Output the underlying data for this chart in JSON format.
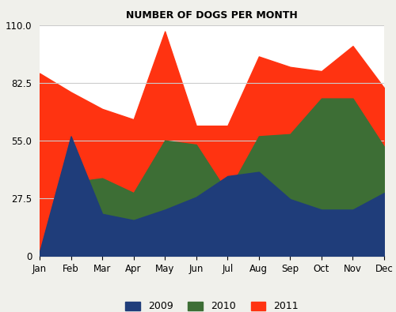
{
  "title": "NUMBER OF DOGS PER MONTH",
  "months": [
    "Jan",
    "Feb",
    "Mar",
    "Apr",
    "May",
    "Jun",
    "Jul",
    "Aug",
    "Sep",
    "Oct",
    "Nov",
    "Dec"
  ],
  "series": {
    "2009": [
      2,
      57,
      20,
      17,
      22,
      28,
      38,
      40,
      27,
      22,
      22,
      30
    ],
    "2010": [
      2,
      35,
      37,
      30,
      55,
      53,
      30,
      57,
      58,
      75,
      75,
      52
    ],
    "2011": [
      87,
      78,
      70,
      65,
      107,
      62,
      62,
      95,
      90,
      88,
      100,
      80
    ]
  },
  "colors": {
    "2009": "#1f3d7a",
    "2010": "#3d6e35",
    "2011": "#ff3311"
  },
  "ylim": [
    0,
    110
  ],
  "yticks": [
    0,
    27.5,
    55.0,
    82.5,
    110.0
  ],
  "ytick_labels": [
    "0",
    "27.5",
    "55.0",
    "82.5",
    "110.0"
  ],
  "bg_color": "#f0f0eb",
  "plot_bg": "#ffffff",
  "title_fontsize": 9,
  "grid_color": "#cccccc"
}
